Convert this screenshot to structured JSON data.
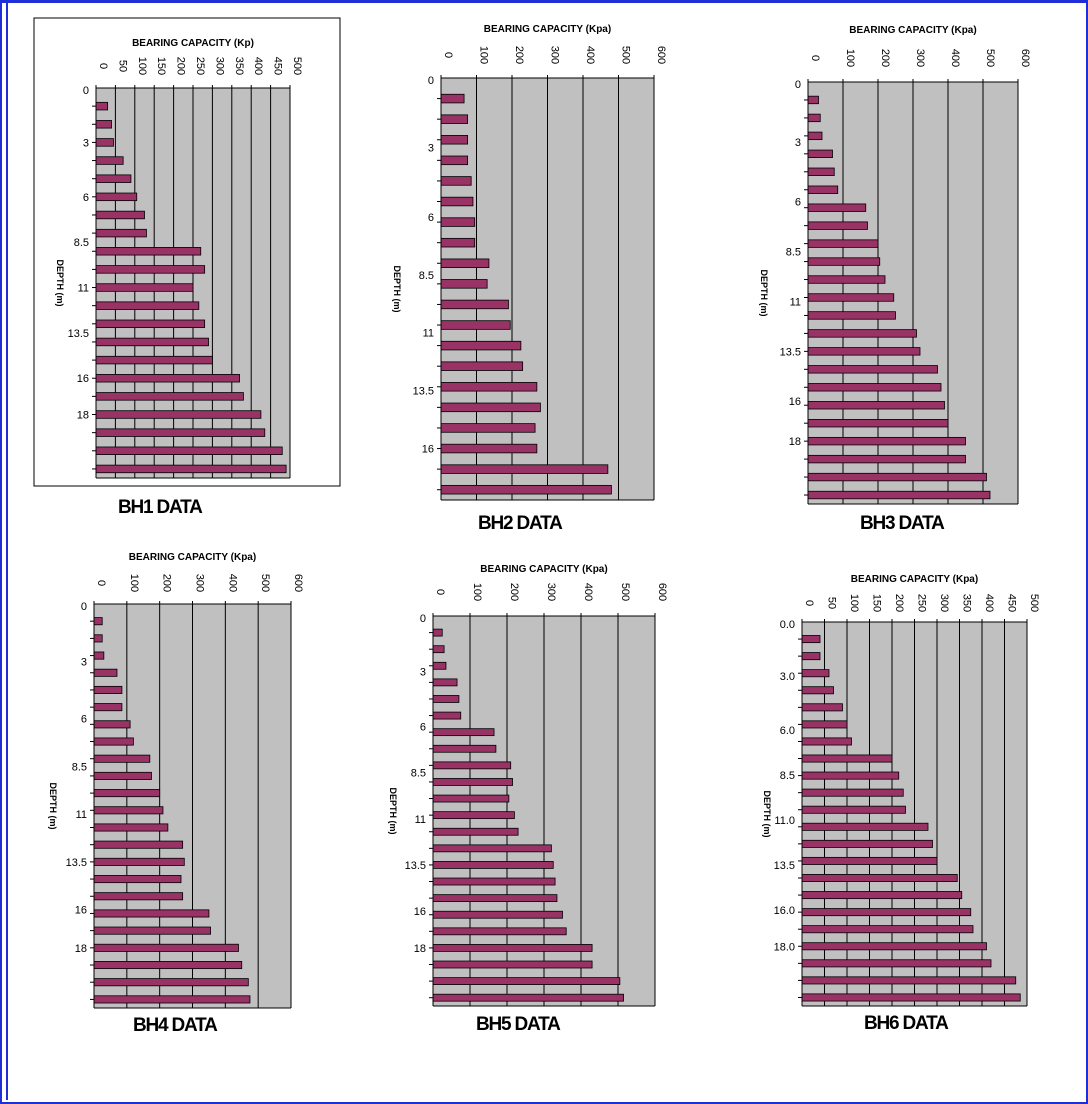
{
  "colors": {
    "frame": "#1e2fd8",
    "plot_bg": "#c0c0c0",
    "bar_fill": "#993366",
    "bar_stroke": "#000000"
  },
  "panels": [
    {
      "label": "BH1 DATA"
    },
    {
      "label": "BH2 DATA"
    },
    {
      "label": "BH3 DATA"
    },
    {
      "label": "BH4 DATA"
    },
    {
      "label": "BH5 DATA"
    },
    {
      "label": "BH6 DATA"
    }
  ],
  "chart_data": [
    {
      "type": "bar",
      "orientation": "horizontal",
      "grid": true,
      "title": "BEARING CAPACITY (Kp)",
      "ylabel": "DEPTH (m)",
      "xlim": [
        0,
        500
      ],
      "xticks": [
        "0",
        "50",
        "100",
        "150",
        "200",
        "250",
        "300",
        "350",
        "400",
        "450",
        "500"
      ],
      "depth_ticks": [
        "0",
        "3",
        "6",
        "8.5",
        "11",
        "13.5",
        "16",
        "18"
      ],
      "values": [
        30,
        40,
        45,
        70,
        90,
        105,
        125,
        130,
        270,
        280,
        250,
        265,
        280,
        290,
        300,
        370,
        380,
        425,
        435,
        480,
        490
      ]
    },
    {
      "type": "bar",
      "orientation": "horizontal",
      "grid": true,
      "title": "BEARING CAPACITY (Kpa)",
      "ylabel": "DEPTH (m)",
      "xlim": [
        0,
        600
      ],
      "xticks": [
        "0",
        "100",
        "200",
        "300",
        "400",
        "500",
        "600"
      ],
      "depth_ticks": [
        "0",
        "3",
        "6",
        "8.5",
        "11",
        "13.5",
        "16"
      ],
      "values": [
        65,
        75,
        75,
        75,
        85,
        90,
        95,
        95,
        135,
        130,
        190,
        195,
        225,
        230,
        270,
        280,
        265,
        270,
        470,
        480
      ]
    },
    {
      "type": "bar",
      "orientation": "horizontal",
      "grid": true,
      "title": "BEARING CAPACITY (Kpa)",
      "ylabel": "DEPTH (m)",
      "xlim": [
        0,
        600
      ],
      "xticks": [
        "0",
        "100",
        "200",
        "300",
        "400",
        "500",
        "600"
      ],
      "depth_ticks": [
        "0",
        "3",
        "6",
        "8.5",
        "11",
        "13.5",
        "16",
        "18"
      ],
      "values": [
        30,
        35,
        40,
        70,
        75,
        85,
        165,
        170,
        200,
        205,
        220,
        245,
        250,
        310,
        320,
        370,
        380,
        390,
        400,
        450,
        450,
        510,
        520
      ]
    },
    {
      "type": "bar",
      "orientation": "horizontal",
      "grid": true,
      "title": "BEARING CAPACITY (Kpa)",
      "ylabel": "DEPTH (m)",
      "xlim": [
        0,
        600
      ],
      "xticks": [
        "0",
        "100",
        "200",
        "300",
        "400",
        "500",
        "600"
      ],
      "depth_ticks": [
        "0",
        "3",
        "6",
        "8.5",
        "11",
        "13.5",
        "16",
        "18"
      ],
      "values": [
        25,
        25,
        30,
        70,
        85,
        85,
        110,
        120,
        170,
        175,
        200,
        210,
        225,
        270,
        275,
        265,
        270,
        350,
        355,
        440,
        450,
        470,
        475
      ]
    },
    {
      "type": "bar",
      "orientation": "horizontal",
      "grid": true,
      "title": "BEARING CAPACITY (Kpa)",
      "ylabel": "DEPTH (m)",
      "xlim": [
        0,
        600
      ],
      "xticks": [
        "0",
        "100",
        "200",
        "300",
        "400",
        "500",
        "600"
      ],
      "depth_ticks": [
        "0",
        "3",
        "6",
        "8.5",
        "11",
        "13.5",
        "16",
        "18"
      ],
      "values": [
        25,
        30,
        35,
        65,
        70,
        75,
        165,
        170,
        210,
        215,
        205,
        220,
        230,
        320,
        325,
        330,
        335,
        350,
        360,
        430,
        430,
        505,
        515
      ]
    },
    {
      "type": "bar",
      "orientation": "horizontal",
      "grid": true,
      "title": "BEARING CAPACITY (Kpa)",
      "ylabel": "DEPTH (m)",
      "xlim": [
        0,
        500
      ],
      "xticks": [
        "0",
        "50",
        "100",
        "150",
        "200",
        "250",
        "300",
        "350",
        "400",
        "450",
        "500"
      ],
      "depth_ticks": [
        "0.0",
        "3.0",
        "6.0",
        "8.5",
        "11.0",
        "13.5",
        "16.0",
        "18.0"
      ],
      "values": [
        40,
        40,
        60,
        70,
        90,
        100,
        110,
        200,
        215,
        225,
        230,
        280,
        290,
        300,
        345,
        355,
        375,
        380,
        410,
        420,
        475,
        485
      ]
    }
  ]
}
